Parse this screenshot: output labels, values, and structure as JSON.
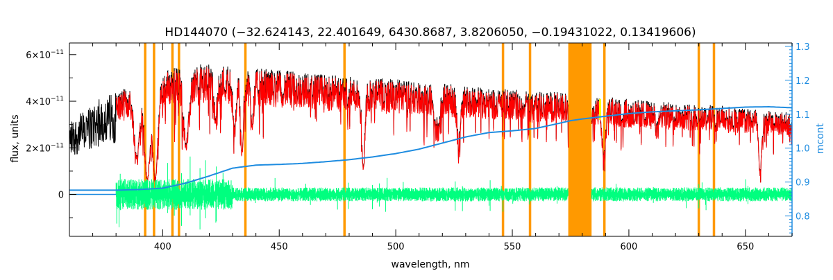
{
  "chart_data": {
    "type": "line",
    "title": "HD144070    (−32.624143, 22.401649, 6430.8687, 3.8206050, −0.19431022, 0.13419606)",
    "xlabel": "wavelength, nm",
    "ylabel": "flux, units",
    "y2label": "mcont",
    "xlim": [
      360,
      670
    ],
    "ylim": [
      -1.8e-11,
      6.5e-11
    ],
    "y2lim": [
      0.74,
      1.31
    ],
    "x_ticks": [
      400,
      450,
      500,
      550,
      600,
      650
    ],
    "x_tick_labels": [
      "400",
      "450",
      "500",
      "550",
      "600",
      "650"
    ],
    "y_ticks": [
      0,
      2e-11,
      4e-11,
      6e-11
    ],
    "y_tick_labels": [
      {
        "mantissa": "0",
        "exp": ""
      },
      {
        "mantissa": "2×10",
        "exp": "−11"
      },
      {
        "mantissa": "4×10",
        "exp": "−11"
      },
      {
        "mantissa": "6×10",
        "exp": "−11"
      }
    ],
    "y2_ticks": [
      0.8,
      0.9,
      1.0,
      1.1,
      1.2,
      1.3
    ],
    "y2_tick_labels": [
      "0.8",
      "0.9",
      "1.0",
      "1.1",
      "1.2",
      "1.3"
    ],
    "colors": {
      "observed": "#000000",
      "model": "#ff0000",
      "residual": "#00ff7f",
      "mcont": "#1e8ce0",
      "mask": "#ff9900",
      "highlight": "#ffff00",
      "right_axis": "#1e8ce0"
    },
    "mask_lines": [
      392.5,
      396.3,
      404.2,
      407.0,
      435.5,
      478.0,
      546.0,
      557.6,
      589.5,
      630.0,
      636.5
    ],
    "mask_bands": [
      [
        574,
        584
      ]
    ],
    "mcont_curve": {
      "axis": "right",
      "x": [
        360,
        380,
        390,
        400,
        410,
        420,
        430,
        440,
        450,
        460,
        470,
        480,
        490,
        500,
        510,
        520,
        530,
        540,
        550,
        560,
        570,
        575,
        580,
        590,
        600,
        610,
        620,
        630,
        640,
        650,
        660,
        670
      ],
      "y": [
        0.876,
        0.876,
        0.878,
        0.882,
        0.897,
        0.918,
        0.941,
        0.95,
        0.952,
        0.955,
        0.96,
        0.966,
        0.974,
        0.984,
        0.997,
        1.015,
        1.033,
        1.046,
        1.051,
        1.058,
        1.073,
        1.081,
        1.086,
        1.094,
        1.102,
        1.107,
        1.11,
        1.113,
        1.117,
        1.121,
        1.122,
        1.119
      ]
    },
    "observed_envelope": {
      "x": [
        360,
        365,
        370,
        375,
        380,
        385,
        390,
        395,
        400,
        405,
        410,
        415,
        420,
        425,
        430,
        435,
        440,
        445,
        450,
        460,
        470,
        480,
        490,
        500,
        510,
        520,
        530,
        540,
        550,
        560,
        570,
        575,
        580,
        590,
        600,
        610,
        620,
        630,
        640,
        650,
        660,
        670
      ],
      "y": [
        3.2e-11,
        3.5e-11,
        3.9e-11,
        4.3e-11,
        4.4e-11,
        4.6e-11,
        4.7e-11,
        5e-11,
        5.3e-11,
        5.5e-11,
        5.6e-11,
        5.6e-11,
        5.6e-11,
        5.6e-11,
        5.55e-11,
        5.5e-11,
        5.4e-11,
        5.4e-11,
        5.35e-11,
        5.25e-11,
        5.15e-11,
        5.05e-11,
        5e-11,
        4.95e-11,
        4.85e-11,
        4.75e-11,
        4.7e-11,
        4.6e-11,
        4.5e-11,
        4.45e-11,
        4.4e-11,
        4.3e-11,
        4.25e-11,
        4.2e-11,
        4.1e-11,
        4e-11,
        3.95e-11,
        3.9e-11,
        3.8e-11,
        3.7e-11,
        3.6e-11,
        3.5e-11
      ]
    },
    "strong_lines": [
      {
        "x": 388.9,
        "depth": 0.6
      },
      {
        "x": 393.4,
        "depth": 0.85
      },
      {
        "x": 396.8,
        "depth": 0.85
      },
      {
        "x": 410.2,
        "depth": 0.55
      },
      {
        "x": 422.7,
        "depth": 0.35
      },
      {
        "x": 430.8,
        "depth": 0.45
      },
      {
        "x": 434.0,
        "depth": 0.6
      },
      {
        "x": 438.4,
        "depth": 0.3
      },
      {
        "x": 486.1,
        "depth": 0.75
      },
      {
        "x": 516.9,
        "depth": 0.3
      },
      {
        "x": 518.4,
        "depth": 0.35
      },
      {
        "x": 526.9,
        "depth": 0.25
      },
      {
        "x": 527.0,
        "depth": 0.3
      },
      {
        "x": 589.0,
        "depth": 0.4
      },
      {
        "x": 589.6,
        "depth": 0.35
      },
      {
        "x": 612.2,
        "depth": 0.2
      },
      {
        "x": 656.3,
        "depth": 0.7
      }
    ],
    "residual": {
      "x_start": 380,
      "x_end": 670,
      "center": 0,
      "typical_amplitude": 3e-12
    }
  }
}
